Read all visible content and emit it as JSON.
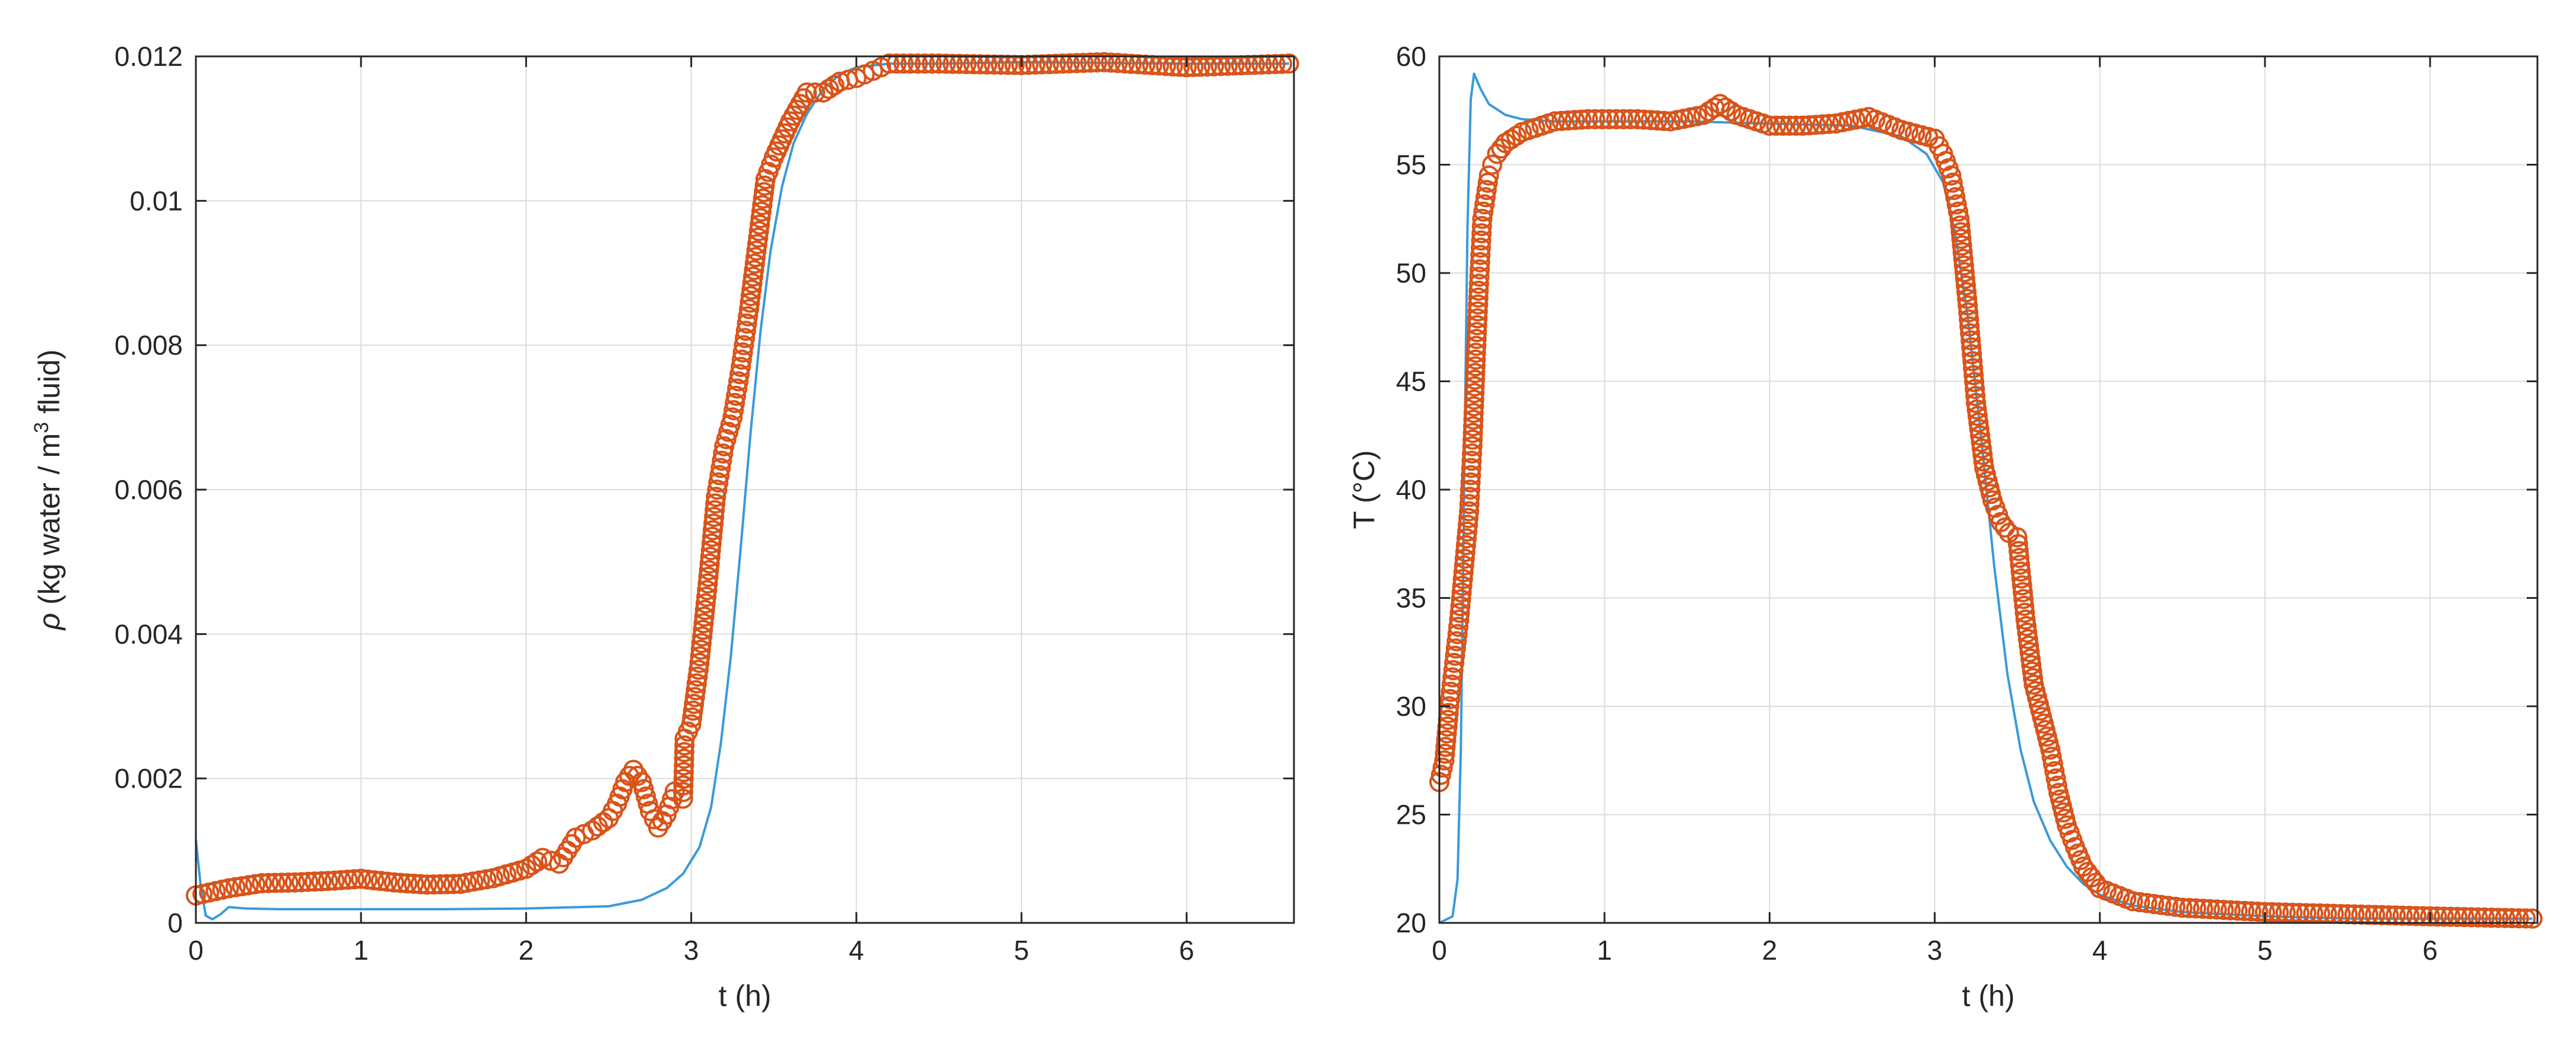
{
  "colors": {
    "model_line": "#3a9ad9",
    "measured_markers": "#d95319",
    "grid": "#dcdcdc",
    "axis": "#262626"
  },
  "chart_data": [
    {
      "type": "scatter",
      "xlabel": "t (h)",
      "ylabel_parts": {
        "rho": "ρ",
        "pre": " (kg water / m",
        "sup": "3",
        "post": " fluid)"
      },
      "xlim": [
        0,
        6.65
      ],
      "ylim": [
        0,
        0.012
      ],
      "xticks": [
        0,
        1,
        2,
        3,
        4,
        5,
        6
      ],
      "yticks": [
        0,
        0.002,
        0.004,
        0.006,
        0.008,
        0.01,
        0.012
      ],
      "ytick_labels": [
        "0",
        "0.002",
        "0.004",
        "0.006",
        "0.008",
        "0.01",
        "0.012"
      ],
      "grid": true,
      "legend": "none",
      "series": [
        {
          "kind": "line",
          "color_key": "model_line",
          "x": [
            0,
            0.03,
            0.06,
            0.1,
            0.15,
            0.2,
            0.3,
            0.5,
            1.0,
            1.5,
            2.0,
            2.5,
            2.7,
            2.85,
            2.95,
            3.05,
            3.12,
            3.18,
            3.24,
            3.3,
            3.36,
            3.42,
            3.48,
            3.55,
            3.62,
            3.7,
            3.8,
            3.9,
            4.0,
            4.2,
            4.5,
            5.0,
            6.0,
            6.62
          ],
          "y": [
            0.00115,
            0.0005,
            0.0001,
            5e-05,
            0.00012,
            0.00022,
            0.0002,
            0.00019,
            0.00019,
            0.00019,
            0.0002,
            0.00023,
            0.00032,
            0.00048,
            0.00068,
            0.00105,
            0.0016,
            0.0025,
            0.0037,
            0.0052,
            0.0068,
            0.0082,
            0.0093,
            0.0102,
            0.0108,
            0.0112,
            0.01155,
            0.01175,
            0.01185,
            0.0119,
            0.0119,
            0.01192,
            0.0119,
            0.0119
          ]
        },
        {
          "kind": "markers",
          "color_key": "measured_markers",
          "x": [
            0,
            0.2,
            0.4,
            0.6,
            0.8,
            1.0,
            1.2,
            1.4,
            1.6,
            1.8,
            2.0,
            2.1,
            2.2,
            2.3,
            2.4,
            2.5,
            2.55,
            2.6,
            2.65,
            2.7,
            2.75,
            2.8,
            2.85,
            2.9,
            2.95,
            2.96,
            3.0,
            3.05,
            3.1,
            3.15,
            3.2,
            3.25,
            3.3,
            3.35,
            3.4,
            3.45,
            3.5,
            3.6,
            3.7,
            3.8,
            3.9,
            4.0,
            4.1,
            4.2,
            4.5,
            5.0,
            5.5,
            6.0,
            6.62
          ],
          "y": [
            0.00038,
            0.00048,
            0.00055,
            0.00056,
            0.00058,
            0.00061,
            0.00056,
            0.00053,
            0.00054,
            0.00062,
            0.00075,
            0.0009,
            0.00082,
            0.00118,
            0.00128,
            0.00145,
            0.00165,
            0.00195,
            0.00212,
            0.00195,
            0.00155,
            0.00132,
            0.0015,
            0.00182,
            0.00172,
            0.00255,
            0.00275,
            0.0036,
            0.0047,
            0.0059,
            0.0066,
            0.007,
            0.0077,
            0.0085,
            0.0094,
            0.0103,
            0.0106,
            0.0111,
            0.0115,
            0.0115,
            0.01165,
            0.0117,
            0.0118,
            0.0119,
            0.0119,
            0.01188,
            0.01192,
            0.01185,
            0.0119
          ]
        }
      ]
    },
    {
      "type": "scatter",
      "xlabel": "t (h)",
      "ylabel": "T (°C)",
      "xlim": [
        0,
        6.65
      ],
      "ylim": [
        20,
        60
      ],
      "xticks": [
        0,
        1,
        2,
        3,
        4,
        5,
        6
      ],
      "yticks": [
        20,
        25,
        30,
        35,
        40,
        45,
        50,
        55,
        60
      ],
      "ytick_labels": [
        "20",
        "25",
        "30",
        "35",
        "40",
        "45",
        "50",
        "55",
        "60"
      ],
      "grid": true,
      "legend": "none",
      "series": [
        {
          "kind": "line",
          "color_key": "model_line",
          "x": [
            0,
            0.08,
            0.11,
            0.13,
            0.15,
            0.17,
            0.19,
            0.21,
            0.25,
            0.3,
            0.4,
            0.5,
            0.7,
            1.0,
            1.5,
            2.0,
            2.5,
            2.8,
            2.95,
            3.05,
            3.12,
            3.2,
            3.28,
            3.36,
            3.44,
            3.52,
            3.6,
            3.7,
            3.8,
            3.9,
            4.0,
            4.2,
            4.5,
            5.0,
            5.5,
            6.0,
            6.62
          ],
          "y": [
            20,
            20.3,
            22,
            28,
            40,
            52,
            58,
            59.2,
            58.5,
            57.8,
            57.3,
            57.1,
            57.0,
            57.0,
            57.0,
            56.9,
            56.8,
            56.3,
            55.5,
            54.2,
            52.0,
            48.0,
            42.5,
            36.5,
            31.5,
            28.0,
            25.6,
            23.8,
            22.6,
            21.8,
            21.3,
            20.8,
            20.5,
            20.3,
            20.2,
            20.2,
            20.2
          ]
        },
        {
          "kind": "markers",
          "color_key": "measured_markers",
          "x": [
            0,
            0.03,
            0.06,
            0.09,
            0.12,
            0.15,
            0.18,
            0.2,
            0.22,
            0.24,
            0.26,
            0.28,
            0.3,
            0.32,
            0.35,
            0.4,
            0.5,
            0.7,
            0.9,
            1.2,
            1.4,
            1.6,
            1.7,
            1.8,
            2.0,
            2.2,
            2.4,
            2.6,
            2.8,
            3.0,
            3.05,
            3.1,
            3.15,
            3.2,
            3.25,
            3.3,
            3.35,
            3.4,
            3.45,
            3.5,
            3.55,
            3.6,
            3.65,
            3.7,
            3.75,
            3.8,
            3.85,
            3.9,
            4.0,
            4.2,
            4.5,
            5.0,
            5.5,
            6.0,
            6.62
          ],
          "y": [
            26.5,
            27.5,
            30.0,
            32.0,
            34.0,
            36.5,
            39.0,
            42.0,
            46.0,
            49.5,
            52.5,
            53.5,
            54.5,
            55.0,
            55.5,
            56.0,
            56.5,
            57.0,
            57.1,
            57.1,
            57.0,
            57.3,
            57.8,
            57.3,
            56.8,
            56.8,
            56.9,
            57.2,
            56.6,
            56.2,
            55.5,
            54.5,
            52.5,
            48.5,
            44.0,
            41.0,
            39.5,
            38.5,
            38.0,
            37.8,
            34.0,
            31.0,
            29.5,
            28.0,
            26.0,
            24.5,
            23.5,
            22.6,
            21.6,
            21.0,
            20.7,
            20.5,
            20.4,
            20.3,
            20.2
          ]
        }
      ]
    }
  ]
}
